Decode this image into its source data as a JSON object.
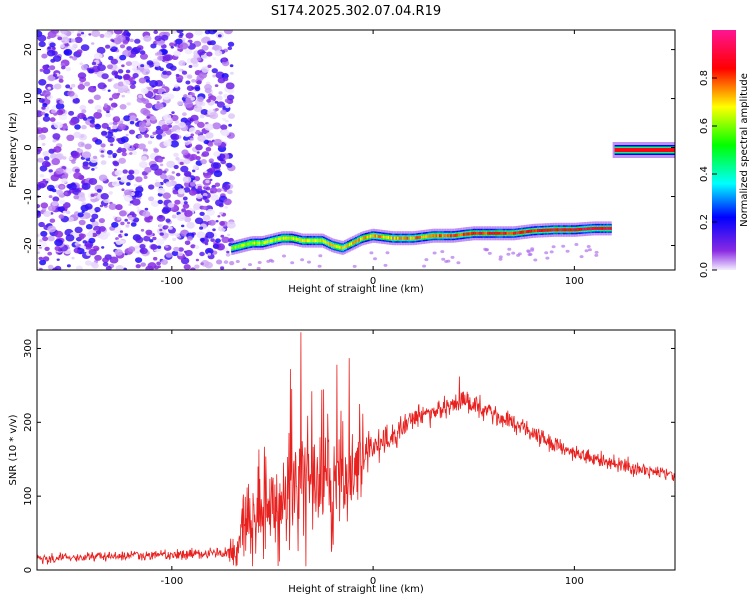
{
  "title": "S174.2025.302.07.04.R19",
  "chart_data": [
    {
      "type": "heatmap",
      "xlabel": "Height of straight line (km)",
      "ylabel": "Frequency (Hz)",
      "xlim": [
        -167,
        150
      ],
      "ylim": [
        -25,
        24
      ],
      "xticks": [
        -100,
        0,
        100
      ],
      "yticks": [
        -20,
        -10,
        0,
        10,
        20
      ],
      "noise_region": {
        "x": [
          -167,
          -70
        ],
        "y": [
          -25,
          24
        ]
      },
      "colorbar": {
        "label": "Normalized spectral amplitude",
        "range": [
          0,
          1
        ],
        "ticks": [
          0.0,
          0.2,
          0.4,
          0.6,
          0.8
        ],
        "colors": [
          "#e8ddff",
          "#8a2be2",
          "#0000ff",
          "#00ffff",
          "#00ff00",
          "#ffff00",
          "#ff0000",
          "#ff1493"
        ]
      },
      "ridge": {
        "x": [
          -70,
          -65,
          -60,
          -55,
          -50,
          -45,
          -40,
          -35,
          -30,
          -25,
          -20,
          -15,
          -10,
          -5,
          0,
          10,
          20,
          30,
          40,
          50,
          60,
          70,
          80,
          90,
          100,
          110,
          118
        ],
        "freq": [
          -20.5,
          -20,
          -19.5,
          -19.5,
          -19,
          -18.5,
          -18.5,
          -19,
          -19,
          -19,
          -20,
          -20.5,
          -19.5,
          -18.5,
          -18,
          -18.5,
          -18.5,
          -18,
          -18,
          -17.5,
          -17.5,
          -17.5,
          -17,
          -16.8,
          -16.8,
          -16.5,
          -16.5
        ]
      },
      "tone": {
        "x": [
          120,
          150
        ],
        "freq": -0.5
      }
    },
    {
      "type": "line",
      "xlabel": "Height of straight line (km)",
      "ylabel": "SNR (10 * v/v)",
      "xlim": [
        -167,
        150
      ],
      "ylim": [
        0,
        325
      ],
      "xticks": [
        -100,
        0,
        100
      ],
      "yticks": [
        0,
        100,
        200,
        300
      ],
      "color": "#e8201e",
      "envelope": {
        "x": [
          -167,
          -140,
          -110,
          -80,
          -72,
          -68,
          -62,
          -55,
          -50,
          -45,
          -40,
          -35,
          -30,
          -25,
          -20,
          -15,
          -10,
          -5,
          0,
          10,
          20,
          30,
          40,
          45,
          50,
          60,
          70,
          80,
          90,
          100,
          110,
          120,
          130,
          140,
          150
        ],
        "base": [
          15,
          18,
          20,
          22,
          25,
          35,
          60,
          75,
          80,
          90,
          110,
          120,
          115,
          140,
          125,
          130,
          145,
          150,
          165,
          180,
          205,
          215,
          225,
          230,
          225,
          210,
          200,
          185,
          170,
          160,
          150,
          142,
          137,
          133,
          128
        ],
        "spread": [
          8,
          8,
          8,
          8,
          10,
          40,
          55,
          60,
          65,
          70,
          90,
          100,
          95,
          90,
          85,
          80,
          60,
          45,
          35,
          25,
          20,
          18,
          18,
          20,
          18,
          15,
          15,
          15,
          14,
          14,
          14,
          14,
          14,
          13,
          13
        ]
      },
      "peaks": [
        {
          "x": -36,
          "y": 322
        },
        {
          "x": -41,
          "y": 272
        },
        {
          "x": -12,
          "y": 287
        },
        {
          "x": -18,
          "y": 278
        },
        {
          "x": -54,
          "y": 167
        },
        {
          "x": 43,
          "y": 262
        }
      ]
    }
  ]
}
